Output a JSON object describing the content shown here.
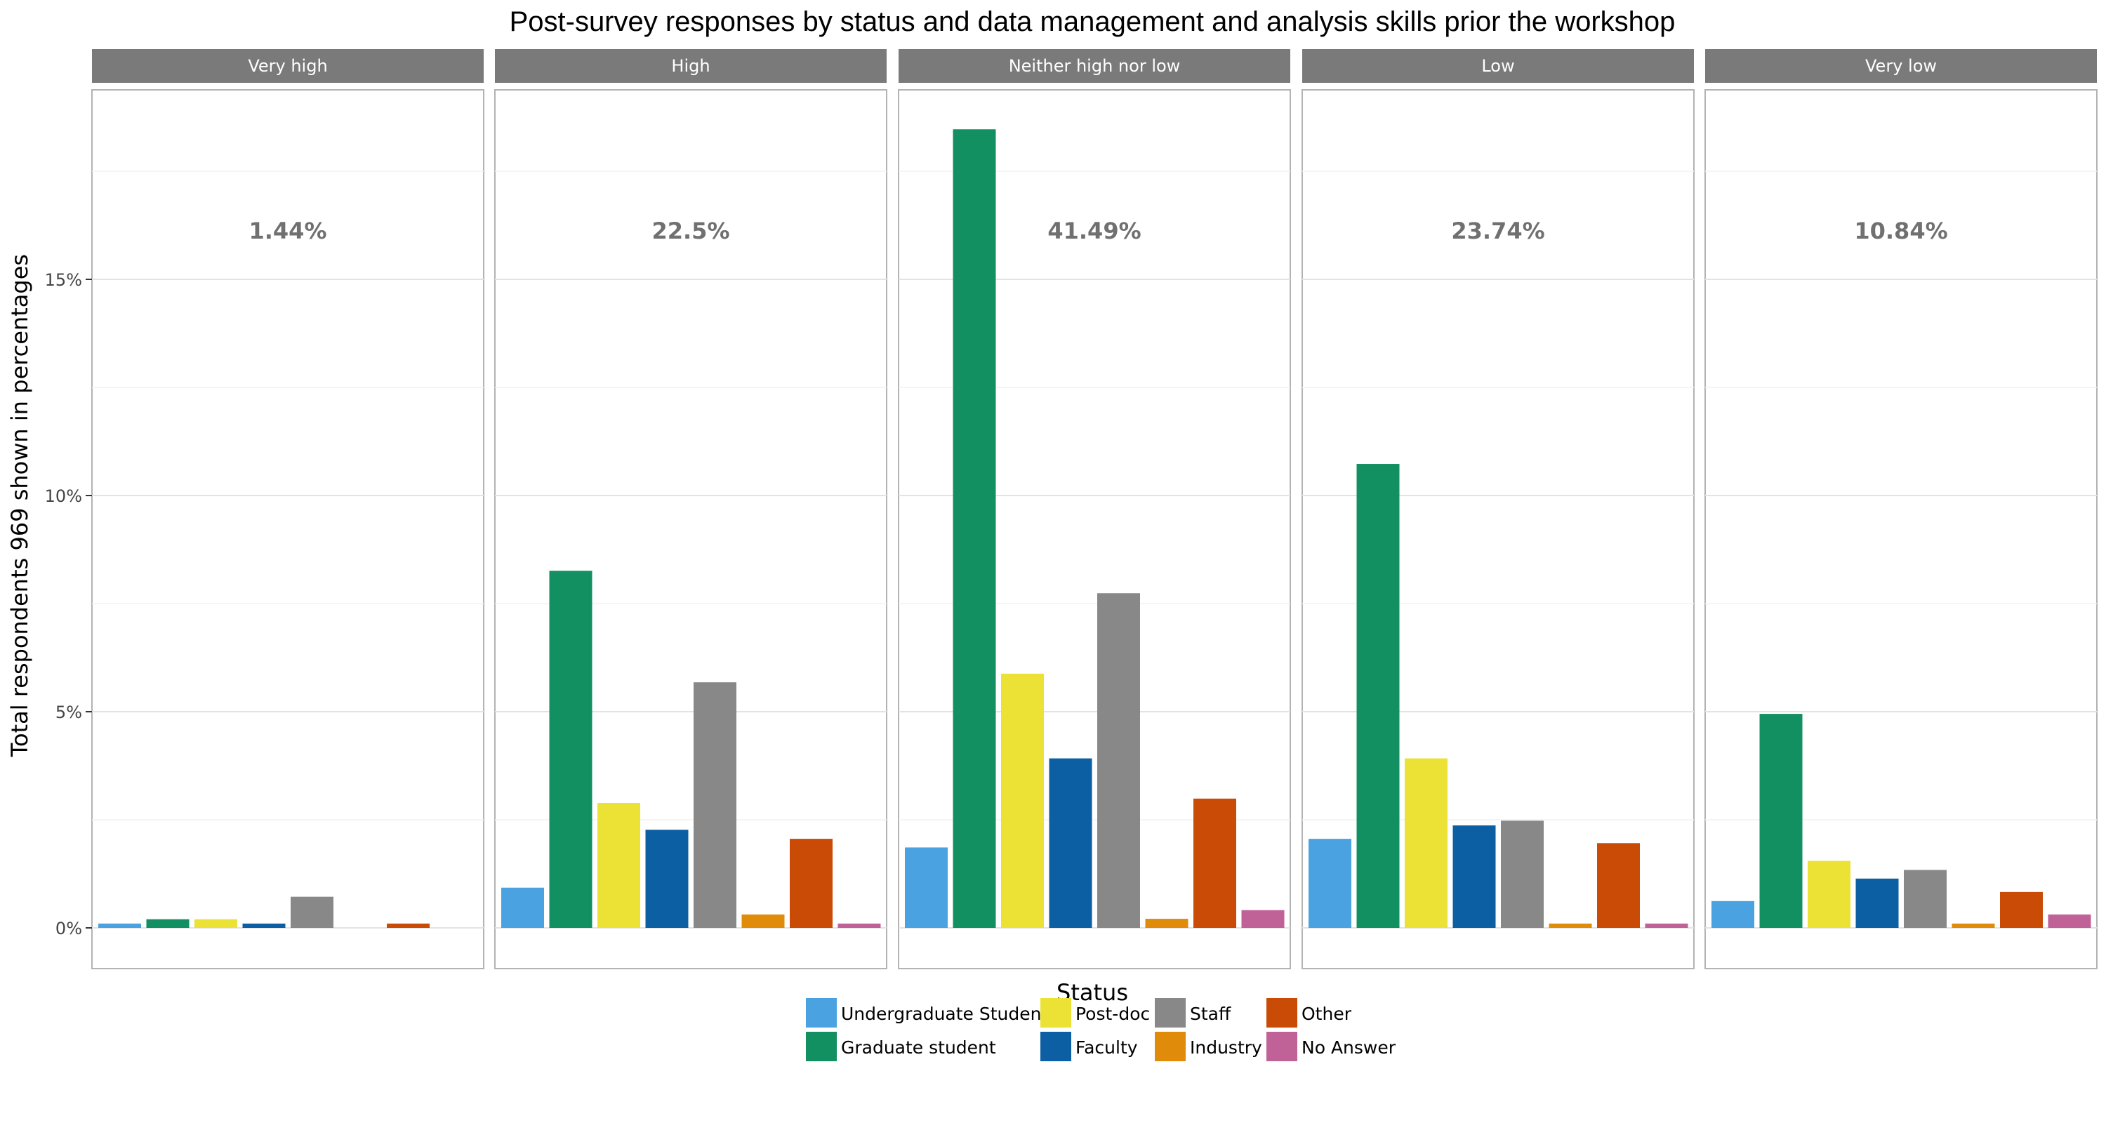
{
  "chart_data": {
    "type": "bar",
    "title": "Post-survey responses by status and data management and analysis skills prior the workshop",
    "xlabel": "Status",
    "ylabel": "Total respondents 969 shown in percentages",
    "ylim": [
      -0.9,
      19.5
    ],
    "yticks": [
      0,
      5,
      10,
      15
    ],
    "ytick_labels": [
      "0%",
      "5%",
      "10%",
      "15%"
    ],
    "grid": true,
    "legend_position": "bottom",
    "categories": [
      "Undergraduate Student",
      "Graduate student",
      "Post-doc",
      "Faculty",
      "Industry",
      "Staff",
      "Other",
      "No Answer"
    ],
    "bar_order": [
      "Undergraduate Student",
      "Graduate student",
      "Post-doc",
      "Faculty",
      "Staff",
      "Industry",
      "Other",
      "No Answer"
    ],
    "legend_order": [
      "Undergraduate Student",
      "Graduate student",
      "Post-doc",
      "Faculty",
      "Staff",
      "Industry",
      "Other",
      "No Answer"
    ],
    "colors": {
      "Undergraduate Student": "#4aa3e0",
      "Graduate student": "#139062",
      "Post-doc": "#ece236",
      "Faculty": "#0c5fa3",
      "Staff": "#888888",
      "Industry": "#e08c0a",
      "Other": "#c94b06",
      "No Answer": "#c06198"
    },
    "panels": [
      {
        "name": "Very high",
        "total_label": "1.44%",
        "values": {
          "Undergraduate Student": 0.1,
          "Graduate student": 0.2,
          "Post-doc": 0.2,
          "Faculty": 0.1,
          "Staff": 0.72,
          "Industry": 0,
          "Other": 0.1,
          "No Answer": 0
        }
      },
      {
        "name": "High",
        "total_label": "22.5%",
        "values": {
          "Undergraduate Student": 0.93,
          "Graduate student": 8.26,
          "Post-doc": 2.89,
          "Faculty": 2.27,
          "Staff": 5.68,
          "Industry": 0.31,
          "Other": 2.06,
          "No Answer": 0.1
        }
      },
      {
        "name": "Neither high nor low",
        "total_label": "41.49%",
        "values": {
          "Undergraduate Student": 1.86,
          "Graduate student": 18.47,
          "Post-doc": 5.88,
          "Faculty": 3.92,
          "Staff": 7.74,
          "Industry": 0.21,
          "Other": 2.99,
          "No Answer": 0.41
        }
      },
      {
        "name": "Low",
        "total_label": "23.74%",
        "values": {
          "Undergraduate Student": 2.06,
          "Graduate student": 10.73,
          "Post-doc": 3.92,
          "Faculty": 2.37,
          "Staff": 2.48,
          "Industry": 0.1,
          "Other": 1.96,
          "No Answer": 0.1
        }
      },
      {
        "name": "Very low",
        "total_label": "10.84%",
        "values": {
          "Undergraduate Student": 0.62,
          "Graduate student": 4.95,
          "Post-doc": 1.55,
          "Faculty": 1.14,
          "Staff": 1.34,
          "Industry": 0.1,
          "Other": 0.83,
          "No Answer": 0.31
        }
      }
    ]
  }
}
